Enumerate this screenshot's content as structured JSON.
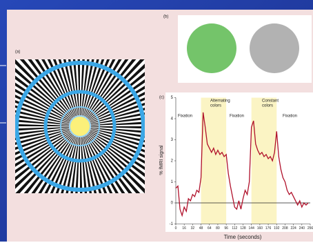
{
  "panels": {
    "a": "(a)",
    "b": "(b)"
  },
  "chart_data": {
    "type": "line",
    "panel_label": "(c)",
    "x_label": "Time (seconds)",
    "y_label": "% fMRI signal",
    "xlim": [
      0,
      256
    ],
    "ylim": [
      -1,
      5
    ],
    "xticks": [
      0,
      16,
      32,
      48,
      64,
      80,
      96,
      112,
      128,
      144,
      160,
      176,
      192,
      208,
      224,
      240,
      256
    ],
    "yticks": [
      -1,
      0,
      1,
      2,
      3,
      4,
      5
    ],
    "shaded": [
      [
        48,
        96
      ],
      [
        144,
        192
      ]
    ],
    "shade_color": "#fbf4c4",
    "zero_line": true,
    "annotations": [
      "Fixation",
      "Alternating",
      "colors",
      "Fixation",
      "Constant",
      "colors",
      "Fixation"
    ],
    "x": [
      0,
      4,
      8,
      12,
      16,
      20,
      24,
      28,
      32,
      36,
      40,
      44,
      48,
      52,
      56,
      60,
      64,
      68,
      72,
      76,
      80,
      84,
      88,
      92,
      96,
      100,
      104,
      108,
      112,
      116,
      120,
      124,
      128,
      132,
      136,
      140,
      144,
      148,
      152,
      156,
      160,
      164,
      168,
      172,
      176,
      180,
      184,
      188,
      192,
      196,
      200,
      204,
      208,
      212,
      216,
      220,
      224,
      228,
      232,
      236,
      240,
      244,
      248,
      252
    ],
    "series": [
      {
        "color": "#b0102a",
        "values": [
          0.7,
          0.8,
          -0.3,
          -0.6,
          -0.2,
          -0.4,
          0.2,
          0.1,
          0.4,
          0.3,
          0.6,
          0.5,
          1.2,
          4.3,
          3.6,
          2.8,
          2.6,
          2.4,
          2.6,
          2.3,
          2.5,
          2.3,
          2.4,
          2.2,
          2.3,
          1.4,
          0.8,
          0.3,
          -0.2,
          -0.3,
          0.1,
          -0.3,
          0.2,
          0.6,
          0.4,
          1.0,
          3.6,
          3.9,
          2.8,
          2.5,
          2.3,
          2.4,
          2.2,
          2.3,
          2.1,
          2.2,
          2.0,
          2.4,
          3.4,
          2.2,
          1.6,
          1.2,
          1.0,
          0.6,
          0.4,
          0.5,
          0.3,
          0.1,
          -0.1,
          0.1,
          -0.2,
          0.0,
          -0.1,
          0.0
        ]
      }
    ]
  }
}
